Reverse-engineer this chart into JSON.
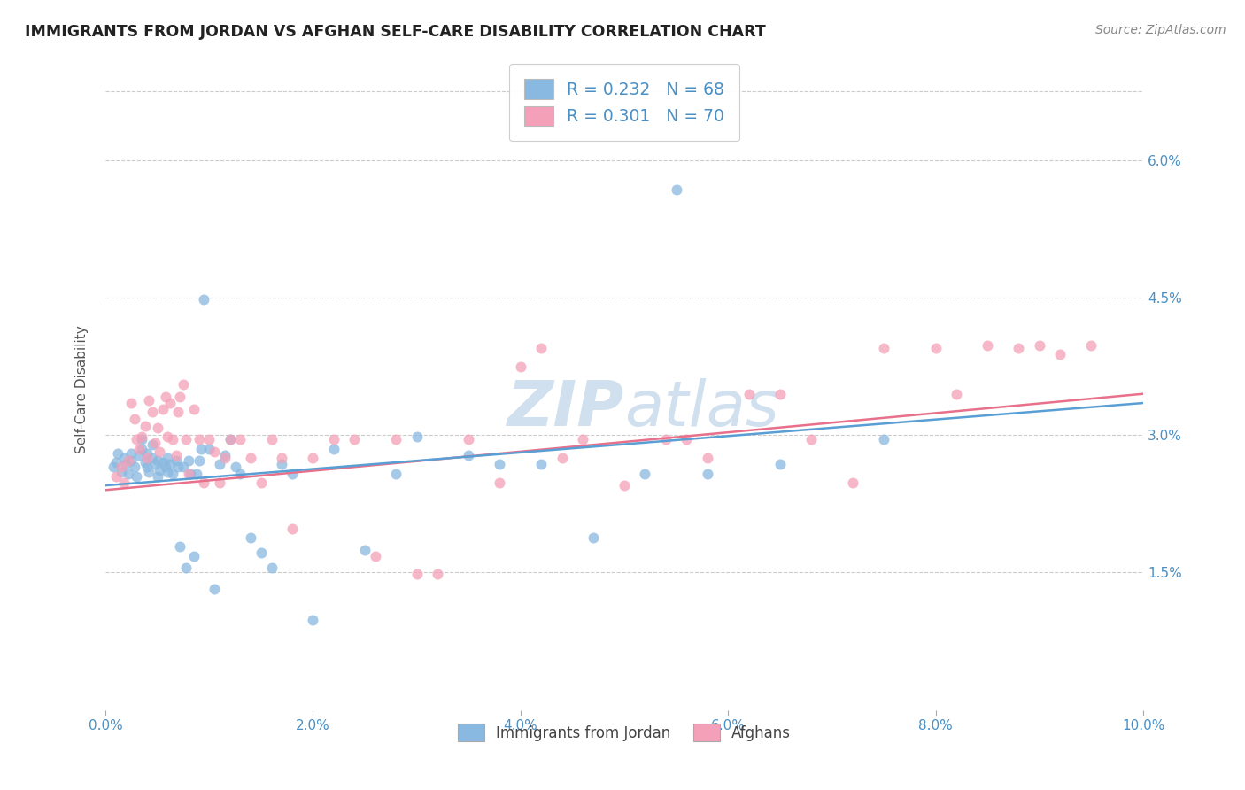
{
  "title": "IMMIGRANTS FROM JORDAN VS AFGHAN SELF-CARE DISABILITY CORRELATION CHART",
  "source": "Source: ZipAtlas.com",
  "ylabel": "Self-Care Disability",
  "xlim": [
    0.0,
    0.1
  ],
  "ylim": [
    0.0,
    0.07
  ],
  "xticks": [
    0.0,
    0.02,
    0.04,
    0.06,
    0.08,
    0.1
  ],
  "xtick_labels": [
    "0.0%",
    "2.0%",
    "4.0%",
    "6.0%",
    "8.0%",
    "10.0%"
  ],
  "ytick_positions": [
    0.015,
    0.03,
    0.045,
    0.06
  ],
  "ytick_labels": [
    "1.5%",
    "3.0%",
    "4.5%",
    "6.0%"
  ],
  "color_jordan": "#89b8e0",
  "color_afghan": "#f4a0b8",
  "color_jordan_line": "#5a9fd4",
  "color_afghan_line": "#e8708a",
  "R_jordan": 0.232,
  "N_jordan": 68,
  "R_afghan": 0.301,
  "N_afghan": 70,
  "watermark_color": "#ccdded",
  "legend_r1": "R = 0.232",
  "legend_n1": "N = 68",
  "legend_r2": "R = 0.301",
  "legend_n2": "N = 70",
  "jordan_x": [
    0.0008,
    0.001,
    0.0012,
    0.0015,
    0.0018,
    0.002,
    0.0022,
    0.0025,
    0.0025,
    0.0028,
    0.003,
    0.0032,
    0.0035,
    0.0035,
    0.0038,
    0.004,
    0.004,
    0.0042,
    0.0045,
    0.0045,
    0.0048,
    0.005,
    0.005,
    0.0052,
    0.0055,
    0.0058,
    0.006,
    0.006,
    0.0062,
    0.0065,
    0.0068,
    0.007,
    0.0072,
    0.0075,
    0.0078,
    0.008,
    0.0082,
    0.0085,
    0.0088,
    0.009,
    0.0092,
    0.0095,
    0.01,
    0.0105,
    0.011,
    0.0115,
    0.012,
    0.0125,
    0.013,
    0.014,
    0.015,
    0.016,
    0.017,
    0.018,
    0.02,
    0.022,
    0.025,
    0.028,
    0.03,
    0.035,
    0.038,
    0.042,
    0.047,
    0.052,
    0.055,
    0.058,
    0.065,
    0.075
  ],
  "jordan_y": [
    0.0265,
    0.027,
    0.028,
    0.026,
    0.0275,
    0.0268,
    0.0258,
    0.0272,
    0.028,
    0.0265,
    0.0255,
    0.0278,
    0.0285,
    0.0295,
    0.027,
    0.0265,
    0.028,
    0.026,
    0.0275,
    0.029,
    0.0268,
    0.0255,
    0.0272,
    0.0262,
    0.027,
    0.0265,
    0.026,
    0.0275,
    0.0268,
    0.0258,
    0.0272,
    0.0265,
    0.0178,
    0.0265,
    0.0155,
    0.0272,
    0.0258,
    0.0168,
    0.0258,
    0.0272,
    0.0285,
    0.0448,
    0.0285,
    0.0132,
    0.0268,
    0.0278,
    0.0295,
    0.0265,
    0.0258,
    0.0188,
    0.0172,
    0.0155,
    0.0268,
    0.0258,
    0.0098,
    0.0285,
    0.0175,
    0.0258,
    0.0298,
    0.0278,
    0.0268,
    0.0268,
    0.0188,
    0.0258,
    0.0568,
    0.0258,
    0.0268,
    0.0295
  ],
  "afghan_x": [
    0.001,
    0.0015,
    0.0018,
    0.0022,
    0.0025,
    0.0028,
    0.003,
    0.0032,
    0.0035,
    0.0038,
    0.004,
    0.0042,
    0.0045,
    0.0048,
    0.005,
    0.0052,
    0.0055,
    0.0058,
    0.006,
    0.0062,
    0.0065,
    0.0068,
    0.007,
    0.0072,
    0.0075,
    0.0078,
    0.008,
    0.0085,
    0.009,
    0.0095,
    0.01,
    0.0105,
    0.011,
    0.0115,
    0.012,
    0.013,
    0.014,
    0.015,
    0.016,
    0.017,
    0.018,
    0.02,
    0.022,
    0.024,
    0.026,
    0.028,
    0.03,
    0.032,
    0.035,
    0.038,
    0.04,
    0.042,
    0.044,
    0.046,
    0.05,
    0.054,
    0.056,
    0.058,
    0.062,
    0.065,
    0.068,
    0.072,
    0.075,
    0.08,
    0.082,
    0.085,
    0.088,
    0.09,
    0.092,
    0.095
  ],
  "afghan_y": [
    0.0255,
    0.0265,
    0.0248,
    0.0272,
    0.0335,
    0.0318,
    0.0295,
    0.0285,
    0.0298,
    0.031,
    0.0275,
    0.0338,
    0.0325,
    0.0292,
    0.0308,
    0.0282,
    0.0328,
    0.0342,
    0.0298,
    0.0335,
    0.0295,
    0.0278,
    0.0325,
    0.0342,
    0.0355,
    0.0295,
    0.0258,
    0.0328,
    0.0295,
    0.0248,
    0.0295,
    0.0282,
    0.0248,
    0.0275,
    0.0295,
    0.0295,
    0.0275,
    0.0248,
    0.0295,
    0.0275,
    0.0198,
    0.0275,
    0.0295,
    0.0295,
    0.0168,
    0.0295,
    0.0148,
    0.0148,
    0.0295,
    0.0248,
    0.0375,
    0.0395,
    0.0275,
    0.0295,
    0.0245,
    0.0295,
    0.0295,
    0.0275,
    0.0345,
    0.0345,
    0.0295,
    0.0248,
    0.0395,
    0.0395,
    0.0345,
    0.0398,
    0.0395,
    0.0398,
    0.0388,
    0.0398
  ]
}
